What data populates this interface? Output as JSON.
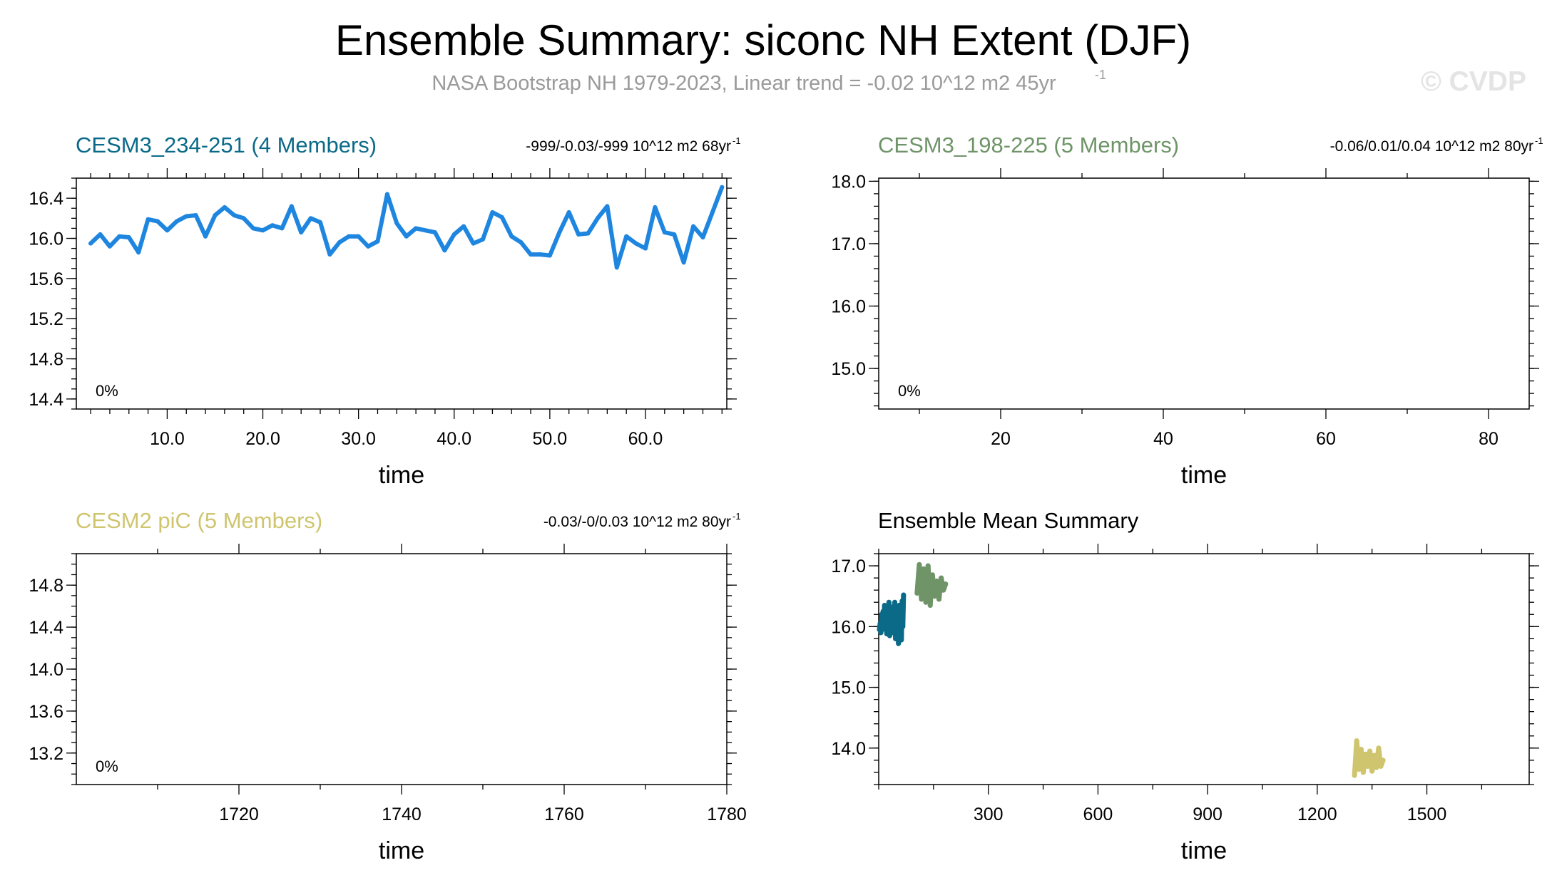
{
  "page": {
    "title": "Ensemble Summary: siconc NH Extent (DJF)",
    "subtitle": "NASA Bootstrap NH 1979-2023, Linear trend = -0.02 10^12 m2 45yr",
    "subtitle_sup": "-1",
    "watermark": "© CVDP"
  },
  "colors": {
    "teal": "#0a6a88",
    "green": "#6f9468",
    "khaki": "#cfc56f",
    "blue": "#1f86e0",
    "gray": "#9a9a9a"
  },
  "chart_data": [
    {
      "type": "line",
      "title": "CESM3_234-251 (4 Members)",
      "title_color": "#0a6a88",
      "stats": "-999/-0.03/-999 10^12 m2 68yr",
      "stats_sup": "-1",
      "annotation": "0%",
      "xlabel": "time",
      "xlim": [
        0.5,
        68.5
      ],
      "ylim": [
        14.3,
        16.6
      ],
      "x_ticks": [
        10.0,
        20.0,
        30.0,
        40.0,
        50.0,
        60.0
      ],
      "x_tick_labels": [
        "10.0",
        "20.0",
        "30.0",
        "40.0",
        "50.0",
        "60.0"
      ],
      "x_minor": [
        2,
        4,
        6,
        8,
        12,
        14,
        16,
        18,
        22,
        24,
        26,
        28,
        32,
        34,
        36,
        38,
        42,
        44,
        46,
        48,
        52,
        54,
        56,
        58,
        62,
        64,
        66,
        68
      ],
      "y_ticks": [
        14.4,
        14.8,
        15.2,
        15.6,
        16.0,
        16.4
      ],
      "y_tick_labels": [
        "14.4",
        "14.8",
        "15.2",
        "15.6",
        "16.0",
        "16.4"
      ],
      "y_minor_step": 0.1,
      "series": [
        {
          "name": "ensemble member",
          "color": "#1f86e0",
          "width": 6,
          "x": [
            2,
            3,
            4,
            5,
            6,
            7,
            8,
            9,
            10,
            11,
            12,
            13,
            14,
            15,
            16,
            17,
            18,
            19,
            20,
            21,
            22,
            23,
            24,
            25,
            26,
            27,
            28,
            29,
            30,
            31,
            32,
            33,
            34,
            35,
            36,
            37,
            38,
            39,
            40,
            41,
            42,
            43,
            44,
            45,
            46,
            47,
            48,
            49,
            50,
            51,
            52,
            53,
            54,
            55,
            56,
            57,
            58,
            59,
            60,
            61,
            62,
            63,
            64,
            65,
            66,
            67,
            68
          ],
          "values": [
            15.95,
            16.04,
            15.92,
            16.02,
            16.01,
            15.86,
            16.19,
            16.17,
            16.08,
            16.17,
            16.22,
            16.23,
            16.02,
            16.23,
            16.31,
            16.23,
            16.2,
            16.1,
            16.08,
            16.13,
            16.1,
            16.32,
            16.06,
            16.2,
            16.16,
            15.84,
            15.96,
            16.02,
            16.02,
            15.92,
            15.97,
            16.44,
            16.15,
            16.02,
            16.1,
            16.08,
            16.06,
            15.88,
            16.04,
            16.12,
            15.95,
            15.99,
            16.26,
            16.21,
            16.02,
            15.96,
            15.84,
            15.84,
            15.83,
            16.06,
            16.26,
            16.04,
            16.05,
            16.2,
            16.32,
            15.71,
            16.02,
            15.95,
            15.9,
            16.31,
            16.06,
            16.04,
            15.76,
            16.12,
            16.01,
            16.26,
            16.51
          ]
        }
      ]
    },
    {
      "type": "line",
      "title": "CESM3_198-225 (5 Members)",
      "title_color": "#6f9468",
      "stats": "-0.06/0.01/0.04 10^12 m2 80yr",
      "stats_sup": "-1",
      "annotation": "0%",
      "xlabel": "time",
      "xlim": [
        5,
        85
      ],
      "ylim": [
        14.35,
        18.05
      ],
      "x_ticks": [
        20,
        40,
        60,
        80
      ],
      "x_tick_labels": [
        "20",
        "40",
        "60",
        "80"
      ],
      "x_minor": [
        10,
        30,
        50,
        70
      ],
      "y_ticks": [
        15.0,
        16.0,
        17.0,
        18.0
      ],
      "y_tick_labels": [
        "15.0",
        "16.0",
        "17.0",
        "18.0"
      ],
      "y_minor_step": 0.2,
      "series": []
    },
    {
      "type": "line",
      "title": "CESM2 piC (5 Members)",
      "title_color": "#cfc56f",
      "stats": "-0.03/-0/0.03 10^12 m2 80yr",
      "stats_sup": "-1",
      "annotation": "0%",
      "xlabel": "time",
      "xlim": [
        1700,
        1780
      ],
      "ylim": [
        12.9,
        15.1
      ],
      "x_ticks": [
        1720,
        1740,
        1760,
        1780
      ],
      "x_tick_labels": [
        "1720",
        "1740",
        "1760",
        "1780"
      ],
      "x_minor": [
        1710,
        1730,
        1750,
        1770
      ],
      "y_ticks": [
        13.2,
        13.6,
        14.0,
        14.4,
        14.8
      ],
      "y_tick_labels": [
        "13.2",
        "13.6",
        "14.0",
        "14.4",
        "14.8"
      ],
      "y_minor_step": 0.1,
      "series": []
    },
    {
      "type": "line",
      "title": "Ensemble Mean Summary",
      "title_color": "#000000",
      "stats": "",
      "stats_sup": "",
      "annotation": "",
      "xlabel": "time",
      "xlim": [
        0,
        1780
      ],
      "ylim": [
        13.4,
        17.2
      ],
      "x_ticks": [
        300,
        600,
        900,
        1200,
        1500
      ],
      "x_tick_labels": [
        "300",
        "600",
        "900",
        "1200",
        "1500"
      ],
      "x_minor": [
        0,
        150,
        450,
        750,
        1050,
        1350,
        1650
      ],
      "y_ticks": [
        14.0,
        15.0,
        16.0,
        17.0
      ],
      "y_tick_labels": [
        "14.0",
        "15.0",
        "16.0",
        "17.0"
      ],
      "y_minor_step": 0.2,
      "series": [
        {
          "name": "CESM3_234-251",
          "color": "#0a6a88",
          "width": 7,
          "x": [
            2,
            4,
            6,
            8,
            10,
            12,
            14,
            16,
            18,
            20,
            22,
            24,
            26,
            28,
            30,
            32,
            34,
            36,
            38,
            40,
            42,
            44,
            46,
            48,
            50,
            52,
            54,
            56,
            58,
            60,
            62,
            64,
            66,
            68
          ],
          "values": [
            15.95,
            16.05,
            15.9,
            16.2,
            16.05,
            16.25,
            16.0,
            16.35,
            15.95,
            16.3,
            15.88,
            16.22,
            15.92,
            16.4,
            15.85,
            16.28,
            16.0,
            16.32,
            15.9,
            16.18,
            16.05,
            16.4,
            15.8,
            16.3,
            15.95,
            16.25,
            15.72,
            16.35,
            15.85,
            16.2,
            15.78,
            16.42,
            16.0,
            16.52
          ]
        },
        {
          "name": "CESM3_198-225",
          "color": "#6f9468",
          "width": 7,
          "x": [
            105,
            111,
            117,
            123,
            129,
            135,
            141,
            147,
            153,
            159,
            165,
            171,
            177,
            183
          ],
          "values": [
            16.55,
            17.02,
            16.45,
            16.95,
            16.4,
            17.0,
            16.35,
            16.85,
            16.5,
            16.75,
            16.45,
            16.8,
            16.6,
            16.7
          ]
        },
        {
          "name": "CESM2 piC",
          "color": "#cfc56f",
          "width": 7,
          "x": [
            1302,
            1308,
            1314,
            1320,
            1326,
            1332,
            1338,
            1344,
            1350,
            1356,
            1362,
            1368,
            1374,
            1380
          ],
          "values": [
            13.55,
            14.12,
            13.65,
            13.98,
            13.6,
            13.9,
            13.7,
            13.95,
            13.62,
            13.88,
            13.68,
            14.0,
            13.7,
            13.8
          ]
        }
      ]
    }
  ]
}
